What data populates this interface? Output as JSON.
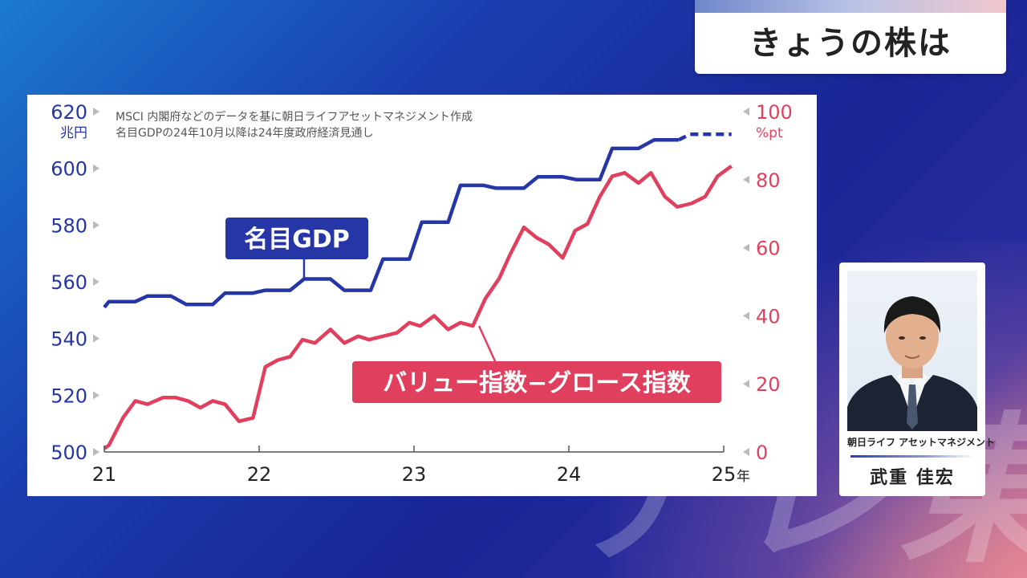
{
  "header": {
    "title": "きょうの株は"
  },
  "watermark": {
    "text": "テレ東"
  },
  "person": {
    "company": "朝日ライフ アセットマネジメント",
    "name": "武重 佳宏"
  },
  "chart_data": {
    "type": "line",
    "notes": [
      "MSCI 内閣府などのデータを基に朝日ライフアセットマネジメント作成",
      "名目GDPの24年10月以降は24年度政府経済見通し"
    ],
    "y_left": {
      "unit": "兆円",
      "ticks": [
        500,
        520,
        540,
        560,
        580,
        600,
        620
      ],
      "ylim": [
        500,
        620
      ],
      "color": "#2636a6"
    },
    "y_right": {
      "unit": "%pt",
      "ticks": [
        0,
        20,
        40,
        60,
        80,
        100
      ],
      "ylim": [
        0,
        100
      ],
      "color": "#e0405e"
    },
    "x": {
      "ticks": [
        21,
        22,
        23,
        24,
        25
      ],
      "tick_labels": [
        "21",
        "22",
        "23",
        "24",
        "25"
      ],
      "last_suffix": "年",
      "xlim": [
        21,
        25
      ]
    },
    "series": [
      {
        "name": "名目GDP",
        "axis": "left",
        "color": "#2636a6",
        "points": [
          [
            21.0,
            551
          ],
          [
            21.03,
            553
          ],
          [
            21.1,
            553
          ],
          [
            21.2,
            553
          ],
          [
            21.28,
            555
          ],
          [
            21.43,
            555
          ],
          [
            21.53,
            552
          ],
          [
            21.7,
            552
          ],
          [
            21.78,
            556
          ],
          [
            21.96,
            556
          ],
          [
            22.04,
            557
          ],
          [
            22.2,
            557
          ],
          [
            22.29,
            561
          ],
          [
            22.46,
            561
          ],
          [
            22.55,
            557
          ],
          [
            22.72,
            557
          ],
          [
            22.8,
            568
          ],
          [
            22.97,
            568
          ],
          [
            23.05,
            581
          ],
          [
            23.22,
            581
          ],
          [
            23.3,
            594
          ],
          [
            23.45,
            594
          ],
          [
            23.53,
            593
          ],
          [
            23.71,
            593
          ],
          [
            23.8,
            597
          ],
          [
            23.96,
            597
          ],
          [
            24.05,
            596
          ],
          [
            24.2,
            596
          ],
          [
            24.28,
            607
          ],
          [
            24.45,
            607
          ],
          [
            24.55,
            610
          ],
          [
            24.71,
            610
          ]
        ],
        "projection": [
          [
            24.71,
            610
          ],
          [
            24.78,
            612
          ],
          [
            24.85,
            612
          ],
          [
            25.05,
            612
          ]
        ]
      },
      {
        "name": "バリュー指数−グロース指数",
        "axis": "right",
        "color": "#e0405e",
        "points": [
          [
            21.0,
            1
          ],
          [
            21.03,
            2
          ],
          [
            21.12,
            10
          ],
          [
            21.2,
            15
          ],
          [
            21.28,
            14
          ],
          [
            21.38,
            16
          ],
          [
            21.46,
            16
          ],
          [
            21.54,
            15
          ],
          [
            21.62,
            13
          ],
          [
            21.7,
            15
          ],
          [
            21.78,
            14
          ],
          [
            21.87,
            9
          ],
          [
            21.96,
            10
          ],
          [
            22.04,
            25
          ],
          [
            22.12,
            27
          ],
          [
            22.2,
            28
          ],
          [
            22.28,
            33
          ],
          [
            22.36,
            32
          ],
          [
            22.46,
            36
          ],
          [
            22.55,
            32
          ],
          [
            22.64,
            34
          ],
          [
            22.71,
            33
          ],
          [
            22.8,
            34
          ],
          [
            22.89,
            35
          ],
          [
            22.97,
            38
          ],
          [
            23.04,
            37
          ],
          [
            23.13,
            40
          ],
          [
            23.22,
            36
          ],
          [
            23.3,
            38
          ],
          [
            23.38,
            37
          ],
          [
            23.46,
            45
          ],
          [
            23.55,
            51
          ],
          [
            23.62,
            58
          ],
          [
            23.71,
            66
          ],
          [
            23.79,
            63
          ],
          [
            23.87,
            61
          ],
          [
            23.96,
            57
          ],
          [
            24.04,
            65
          ],
          [
            24.12,
            67
          ],
          [
            24.2,
            75
          ],
          [
            24.28,
            81
          ],
          [
            24.36,
            82
          ],
          [
            24.45,
            79
          ],
          [
            24.53,
            82
          ],
          [
            24.62,
            75
          ],
          [
            24.7,
            72
          ],
          [
            24.79,
            73
          ],
          [
            24.88,
            75
          ],
          [
            24.96,
            81
          ],
          [
            25.05,
            84
          ]
        ]
      }
    ],
    "annotations": [
      {
        "text": "名目GDP",
        "series": "名目GDP",
        "style": "boxed"
      },
      {
        "text": "バリュー指数−グロース指数",
        "series": "バリュー指数−グロース指数",
        "style": "boxed"
      }
    ],
    "grid": false
  }
}
